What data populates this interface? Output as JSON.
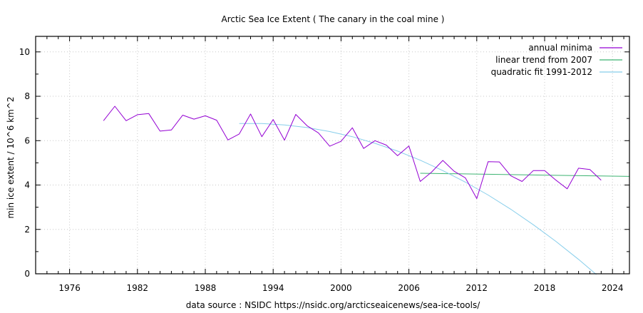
{
  "chart_data": {
    "type": "line",
    "title": "Arctic Sea Ice Extent ( The canary in the coal mine )",
    "xlabel": "data source : NSIDC https://nsidc.org/arcticseaicenews/sea-ice-tools/",
    "ylabel": "min ice extent / 10^6 km^2",
    "xlim": [
      1973,
      2025.5
    ],
    "ylim": [
      0,
      10.7
    ],
    "xticks": [
      1976,
      1982,
      1988,
      1994,
      2000,
      2006,
      2012,
      2018,
      2024
    ],
    "yticks": [
      0,
      2,
      4,
      6,
      8,
      10
    ],
    "grid": true,
    "legend_position": "top-right",
    "series": [
      {
        "name": "annual minima",
        "color": "#9400d3",
        "x": [
          1979,
          1980,
          1981,
          1982,
          1983,
          1984,
          1985,
          1986,
          1987,
          1988,
          1989,
          1990,
          1991,
          1992,
          1993,
          1994,
          1995,
          1996,
          1997,
          1998,
          1999,
          2000,
          2001,
          2002,
          2003,
          2004,
          2005,
          2006,
          2007,
          2008,
          2009,
          2010,
          2011,
          2012,
          2013,
          2014,
          2015,
          2016,
          2017,
          2018,
          2019,
          2020,
          2021,
          2022,
          2023
        ],
        "y": [
          6.9,
          7.55,
          6.9,
          7.17,
          7.22,
          6.43,
          6.48,
          7.15,
          6.97,
          7.12,
          6.92,
          6.03,
          6.3,
          7.2,
          6.18,
          6.95,
          6.02,
          7.18,
          6.67,
          6.35,
          5.75,
          5.97,
          6.58,
          5.65,
          6.0,
          5.8,
          5.32,
          5.76,
          4.16,
          4.58,
          5.11,
          4.62,
          4.32,
          3.39,
          5.05,
          5.04,
          4.42,
          4.16,
          4.65,
          4.65,
          4.22,
          3.83,
          4.76,
          4.7,
          4.22
        ]
      },
      {
        "name": "linear trend from 2007",
        "color": "#3cb371",
        "fit": "linear",
        "x": [
          2007,
          2025.5
        ],
        "y": [
          4.53,
          4.39
        ]
      },
      {
        "name": "quadratic fit 1991-2012",
        "color": "#87ceeb",
        "fit": "quadratic",
        "x": [
          1991,
          1993,
          1995,
          1997,
          1999,
          2001,
          2003,
          2005,
          2007,
          2009,
          2011,
          2013,
          2015,
          2017,
          2019,
          2021,
          2023,
          2023.6
        ],
        "y": [
          6.77,
          6.77,
          6.71,
          6.59,
          6.41,
          6.18,
          5.88,
          5.53,
          5.12,
          4.65,
          4.13,
          3.55,
          2.91,
          2.21,
          1.46,
          0.65,
          -0.22,
          -0.49
        ]
      }
    ]
  }
}
